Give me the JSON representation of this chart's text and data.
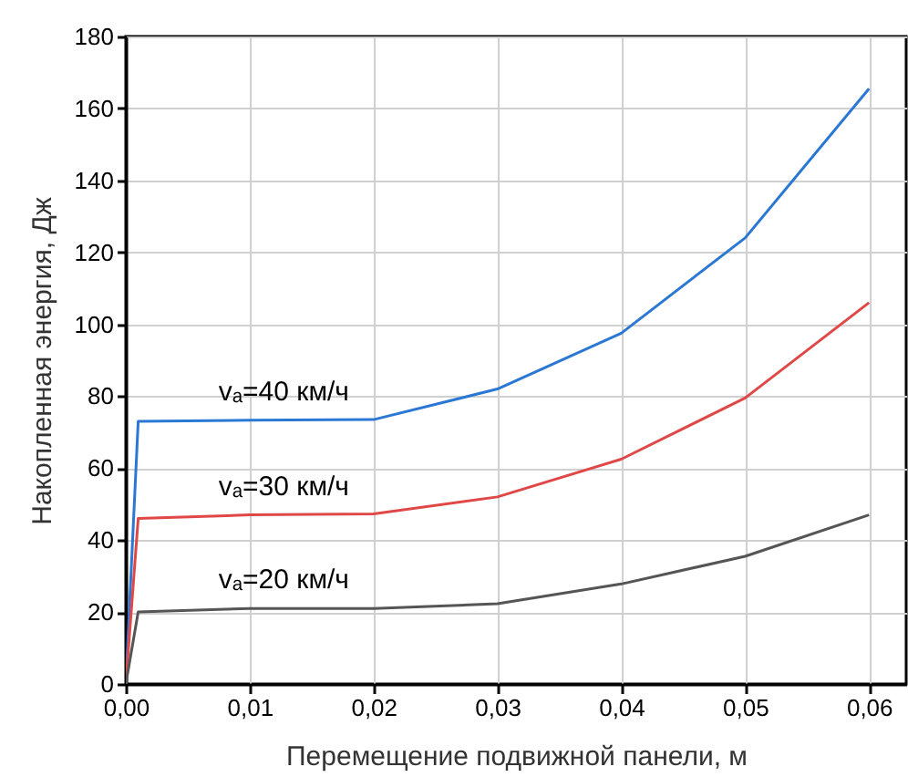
{
  "chart_data": {
    "type": "line",
    "xlabel": "Перемещение подвижной панели, м",
    "ylabel": "Накопленная энергия, Дж",
    "xlim": [
      0,
      0.063
    ],
    "ylim": [
      0,
      180
    ],
    "xticks": [
      {
        "value": 0,
        "label": "0,00"
      },
      {
        "value": 0.01,
        "label": "0,01"
      },
      {
        "value": 0.02,
        "label": "0,02"
      },
      {
        "value": 0.03,
        "label": "0,03"
      },
      {
        "value": 0.04,
        "label": "0,04"
      },
      {
        "value": 0.05,
        "label": "0,05"
      },
      {
        "value": 0.06,
        "label": "0,06"
      }
    ],
    "yticks": [
      0,
      20,
      40,
      60,
      80,
      100,
      120,
      140,
      160,
      180
    ],
    "grid": true,
    "marker": "none",
    "line_style": "solid",
    "x": [
      0,
      0.001,
      0.01,
      0.02,
      0.03,
      0.04,
      0.05,
      0.06
    ],
    "series": [
      {
        "name": "vₐ=40 км/ч",
        "color": "#2a78d4",
        "values": [
          0,
          73,
          73.3,
          73.5,
          82,
          97.5,
          124,
          165.5
        ]
      },
      {
        "name": "vₐ=30 км/ч",
        "color": "#e04848",
        "values": [
          0,
          46,
          47,
          47.3,
          52,
          62.5,
          79.5,
          106
        ]
      },
      {
        "name": "vₐ=20 км/ч",
        "color": "#555555",
        "values": [
          0,
          20,
          21,
          21,
          22.3,
          27.8,
          35.5,
          47
        ]
      }
    ]
  }
}
